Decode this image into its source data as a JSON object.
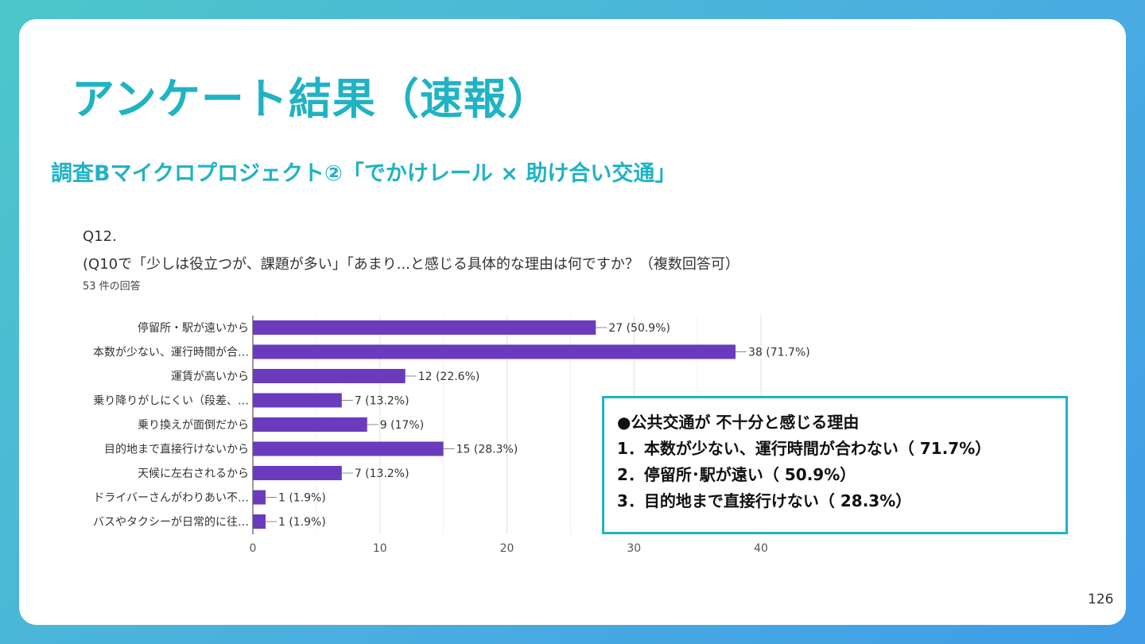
{
  "slide": {
    "title": "アンケート結果（速報）",
    "subtitle": "調査Bマイクロプロジェクト②「でかけレール × 助け合い交通」",
    "page_number": "126"
  },
  "question": {
    "number": "Q12.",
    "text": "(Q10で「少しは役立つが、課題が多い」「あまり...と感じる具体的な理由は何ですか？（複数回答可）",
    "responses": "53 件の回答"
  },
  "chart_data": {
    "type": "bar",
    "orientation": "horizontal",
    "categories": [
      "停留所・駅が遠いから",
      "本数が少ない、運行時間が合…",
      "運賃が高いから",
      "乗り降りがしにくい（段差、…",
      "乗り換えが面倒だから",
      "目的地まで直接行けないから",
      "天候に左右されるから",
      "ドライバーさんがわりあい不…",
      "バスやタクシーが日常的に往…"
    ],
    "values": [
      27,
      38,
      12,
      7,
      9,
      15,
      7,
      1,
      1
    ],
    "value_labels": [
      "27 (50.9%)",
      "38 (71.7%)",
      "12 (22.6%)",
      "7 (13.2%)",
      "9 (17%)",
      "15 (28.3%)",
      "7 (13.2%)",
      "1 (1.9%)",
      "1 (1.9%)"
    ],
    "x_ticks": [
      "0",
      "10",
      "20",
      "30",
      "40"
    ],
    "xlim": [
      0,
      40
    ],
    "bar_color": "#6a3bbd",
    "grid": true
  },
  "callout": {
    "lines": [
      "●公共交通が 不十分と感じる理由",
      "1．本数が少ない、運行時間が合わない（ 71.7%）",
      "2．停留所･駅が遠い（ 50.9%）",
      "3．目的地まで直接行けない（ 28.3%）"
    ]
  },
  "colors": {
    "accent": "#1fb3c4",
    "bar": "#6a3bbd"
  }
}
